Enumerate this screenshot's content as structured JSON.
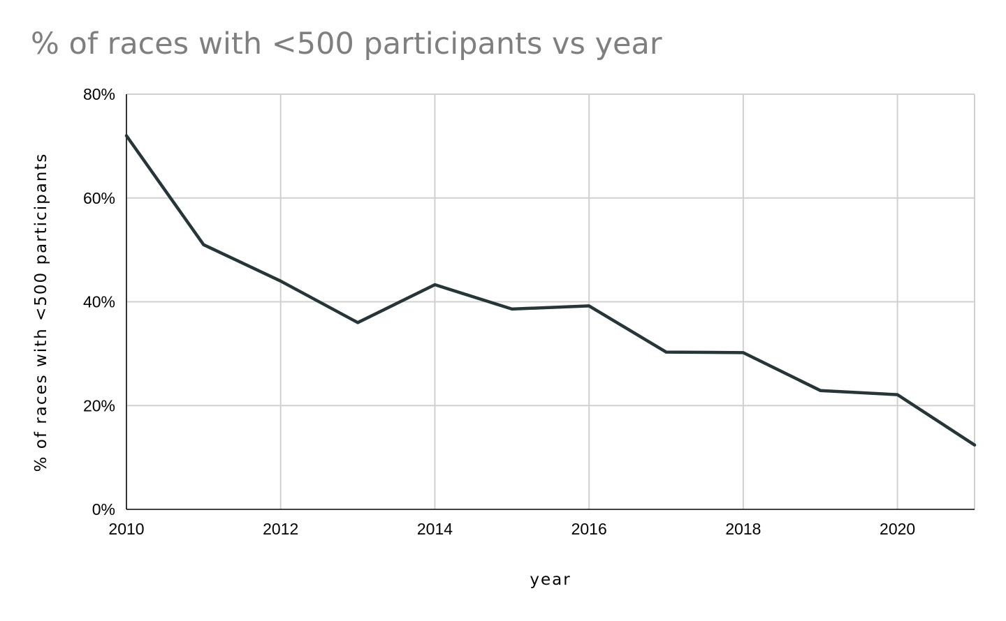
{
  "chart_data": {
    "type": "line",
    "title": "% of races with <500 participants vs year",
    "xlabel": "year",
    "ylabel": "% of races with <500 participants",
    "x": [
      2010,
      2011,
      2012,
      2013,
      2014,
      2015,
      2016,
      2017,
      2018,
      2019,
      2020,
      2021
    ],
    "series": [
      {
        "name": "% of races with <500 participants",
        "values": [
          72,
          51,
          44,
          36,
          43.3,
          38.6,
          39.2,
          30.3,
          30.2,
          22.9,
          22.1,
          12.4
        ],
        "color": "#263638"
      }
    ],
    "xlim": [
      2010,
      2021
    ],
    "ylim": [
      0,
      80
    ],
    "x_ticks": [
      2010,
      2012,
      2014,
      2016,
      2018,
      2020
    ],
    "y_ticks": [
      0,
      20,
      40,
      60,
      80
    ],
    "y_tick_labels": [
      "0%",
      "20%",
      "40%",
      "60%",
      "80%"
    ],
    "grid": true,
    "grid_color": "#d0d0d0",
    "axis_color": "#000000"
  }
}
